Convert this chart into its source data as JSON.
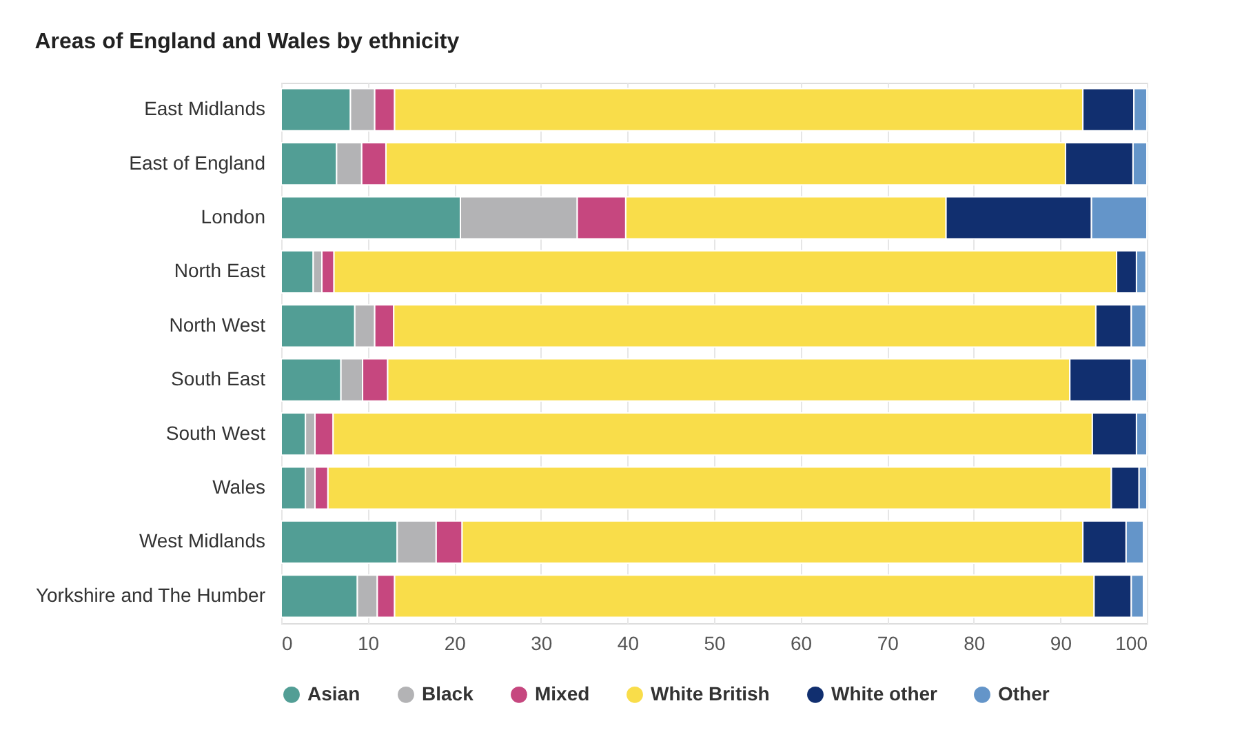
{
  "chart_data": {
    "type": "bar",
    "orientation": "horizontal",
    "stacked": true,
    "title": "Areas of England and Wales by ethnicity",
    "categories": [
      "East Midlands",
      "East of England",
      "London",
      "North East",
      "North West",
      "South East",
      "South West",
      "Wales",
      "West Midlands",
      "Yorkshire and The Humber"
    ],
    "series": [
      {
        "name": "Asian",
        "color": "#529e95",
        "values": [
          8.0,
          6.4,
          20.7,
          3.7,
          8.5,
          6.9,
          2.8,
          2.8,
          13.4,
          8.8
        ]
      },
      {
        "name": "Black",
        "color": "#b3b3b5",
        "values": [
          2.8,
          2.9,
          13.5,
          1.0,
          2.3,
          2.5,
          1.1,
          1.1,
          4.5,
          2.3
        ]
      },
      {
        "name": "Mixed",
        "color": "#c6477f",
        "values": [
          2.3,
          2.8,
          5.6,
          1.4,
          2.2,
          2.9,
          2.1,
          1.5,
          3.0,
          2.0
        ]
      },
      {
        "name": "White British",
        "color": "#f9dd4a",
        "values": [
          79.5,
          78.5,
          37.0,
          90.4,
          81.1,
          78.8,
          87.7,
          90.5,
          71.7,
          80.8
        ]
      },
      {
        "name": "White other",
        "color": "#112f6f",
        "values": [
          5.9,
          7.8,
          16.8,
          2.3,
          4.1,
          7.1,
          5.1,
          3.2,
          5.0,
          4.3
        ]
      },
      {
        "name": "Other",
        "color": "#6495c9",
        "values": [
          1.5,
          1.6,
          6.4,
          1.1,
          1.7,
          1.8,
          1.2,
          0.9,
          2.0,
          1.4
        ]
      }
    ],
    "xlim": [
      0,
      100
    ],
    "xticks": [
      0,
      10,
      20,
      30,
      40,
      50,
      60,
      70,
      80,
      90,
      100
    ],
    "grid": "x",
    "legend": "bottom"
  }
}
